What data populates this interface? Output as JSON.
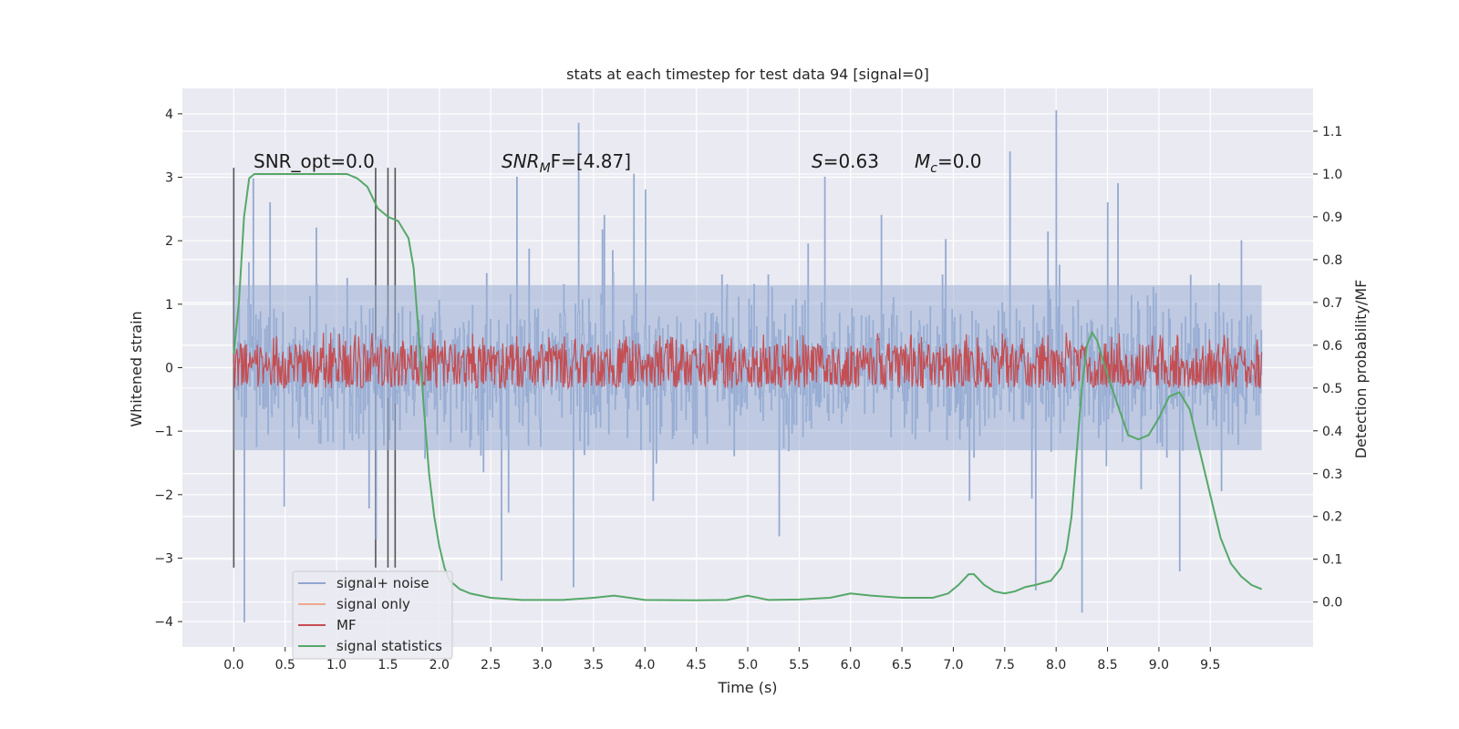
{
  "chart_data": {
    "type": "line",
    "title": "stats at each timestep for test data 94 [signal=0]",
    "xlabel": "Time (s)",
    "ylabel": "Whitened strain",
    "y2label": "Detection probability/MF",
    "xlim": [
      -0.5,
      10.5
    ],
    "ylim": [
      -4.4,
      4.4
    ],
    "y2lim": [
      -0.105,
      1.2
    ],
    "xticks": [
      "0.0",
      "0.5",
      "1.0",
      "1.5",
      "2.0",
      "2.5",
      "3.0",
      "3.5",
      "4.0",
      "4.5",
      "5.0",
      "5.5",
      "6.0",
      "6.5",
      "7.0",
      "7.5",
      "8.0",
      "8.5",
      "9.0",
      "9.5"
    ],
    "yticks": [
      "4",
      "3",
      "2",
      "1",
      "0",
      "−1",
      "−2",
      "−3",
      "−4"
    ],
    "y2ticks": [
      "1.1",
      "1.0",
      "0.9",
      "0.8",
      "0.7",
      "0.6",
      "0.5",
      "0.4",
      "0.3",
      "0.2",
      "0.1",
      "0.0"
    ],
    "grid": true,
    "legend_position": "lower-left",
    "legend": [
      {
        "label": "signal+ noise",
        "color": "#8fa6cf"
      },
      {
        "label": "signal only",
        "color": "#eea98e"
      },
      {
        "label": "MF",
        "color": "#c44e52"
      },
      {
        "label": "signal statistics",
        "color": "#55a868"
      }
    ],
    "annotations": {
      "snr_opt": "SNR_opt=0.0",
      "snr_mf_base": "SNR",
      "snr_mf_sub": "M",
      "snr_mf_rest": "F=[4.87]",
      "s_var": "S",
      "s_val": "=0.63",
      "mc_var": "M",
      "mc_sub": "c",
      "mc_val": "=0.0"
    },
    "vertical_markers": [
      0.0,
      1.38,
      1.5,
      1.57
    ],
    "vertical_marker_range": [
      -3.15,
      3.15
    ],
    "noise_series": {
      "name": "signal+ noise",
      "x_range": [
        0.0,
        10.0
      ],
      "typical_envelope": [
        -1.3,
        1.3
      ],
      "peaks": [
        {
          "x": 0.1,
          "y": -4.0
        },
        {
          "x": 0.35,
          "y": 2.6
        },
        {
          "x": 0.8,
          "y": 2.2
        },
        {
          "x": 1.38,
          "y": -2.7
        },
        {
          "x": 2.6,
          "y": -3.35
        },
        {
          "x": 2.75,
          "y": 3.0
        },
        {
          "x": 3.3,
          "y": -3.45
        },
        {
          "x": 3.35,
          "y": 3.85
        },
        {
          "x": 3.6,
          "y": 2.4
        },
        {
          "x": 4.0,
          "y": 2.8
        },
        {
          "x": 5.75,
          "y": 3.0
        },
        {
          "x": 6.3,
          "y": 2.4
        },
        {
          "x": 7.55,
          "y": 3.4
        },
        {
          "x": 7.8,
          "y": -3.5
        },
        {
          "x": 8.0,
          "y": 4.05
        },
        {
          "x": 8.25,
          "y": -3.85
        },
        {
          "x": 8.5,
          "y": 2.6
        },
        {
          "x": 8.6,
          "y": 2.9
        },
        {
          "x": 9.2,
          "y": -3.2
        },
        {
          "x": 9.8,
          "y": 2.0
        }
      ]
    },
    "mf_series": {
      "name": "MF",
      "x_range": [
        0.0,
        10.0
      ],
      "y2_range": [
        0.5,
        0.63
      ],
      "typical_y2": 0.57
    },
    "signal_statistics": {
      "name": "signal statistics",
      "x": [
        0.0,
        0.05,
        0.1,
        0.15,
        0.2,
        0.4,
        0.8,
        1.0,
        1.1,
        1.2,
        1.3,
        1.4,
        1.5,
        1.6,
        1.7,
        1.75,
        1.8,
        1.85,
        1.9,
        1.95,
        2.0,
        2.05,
        2.1,
        2.2,
        2.3,
        2.5,
        2.8,
        3.2,
        3.5,
        3.7,
        4.0,
        4.5,
        4.8,
        5.0,
        5.2,
        5.5,
        5.8,
        6.0,
        6.2,
        6.5,
        6.8,
        6.95,
        7.05,
        7.15,
        7.2,
        7.3,
        7.4,
        7.5,
        7.6,
        7.7,
        7.8,
        7.95,
        8.05,
        8.1,
        8.15,
        8.2,
        8.25,
        8.3,
        8.35,
        8.4,
        8.5,
        8.6,
        8.7,
        8.8,
        8.9,
        9.0,
        9.1,
        9.2,
        9.3,
        9.4,
        9.5,
        9.6,
        9.7,
        9.8,
        9.9,
        10.0
      ],
      "y": [
        0.58,
        0.7,
        0.9,
        0.99,
        1.0,
        1.0,
        1.0,
        1.0,
        1.0,
        0.99,
        0.97,
        0.92,
        0.9,
        0.89,
        0.85,
        0.78,
        0.62,
        0.45,
        0.3,
        0.2,
        0.13,
        0.08,
        0.05,
        0.03,
        0.02,
        0.01,
        0.005,
        0.005,
        0.01,
        0.015,
        0.005,
        0.004,
        0.005,
        0.015,
        0.005,
        0.006,
        0.01,
        0.02,
        0.015,
        0.01,
        0.01,
        0.02,
        0.04,
        0.065,
        0.065,
        0.04,
        0.025,
        0.02,
        0.025,
        0.035,
        0.04,
        0.05,
        0.08,
        0.12,
        0.2,
        0.35,
        0.5,
        0.6,
        0.63,
        0.61,
        0.53,
        0.46,
        0.39,
        0.38,
        0.39,
        0.43,
        0.48,
        0.49,
        0.45,
        0.35,
        0.25,
        0.15,
        0.09,
        0.06,
        0.04,
        0.03
      ]
    }
  }
}
